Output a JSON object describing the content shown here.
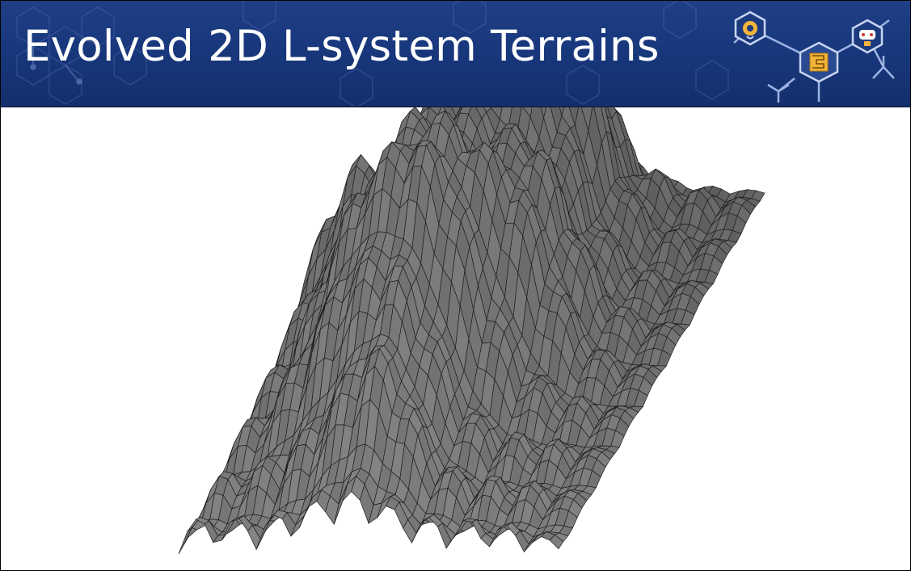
{
  "slide": {
    "title": "Evolved 2D L-system Terrains"
  },
  "banner": {
    "background_color": "#1a3a80",
    "logo_icons": [
      "head-gear-icon",
      "maze-icon",
      "gamepad-robot-icon"
    ]
  },
  "figure": {
    "kind": "3d-wireframe-terrain",
    "surface_color": "#8d8d8d",
    "mesh_line_color": "#1e1e1e"
  }
}
